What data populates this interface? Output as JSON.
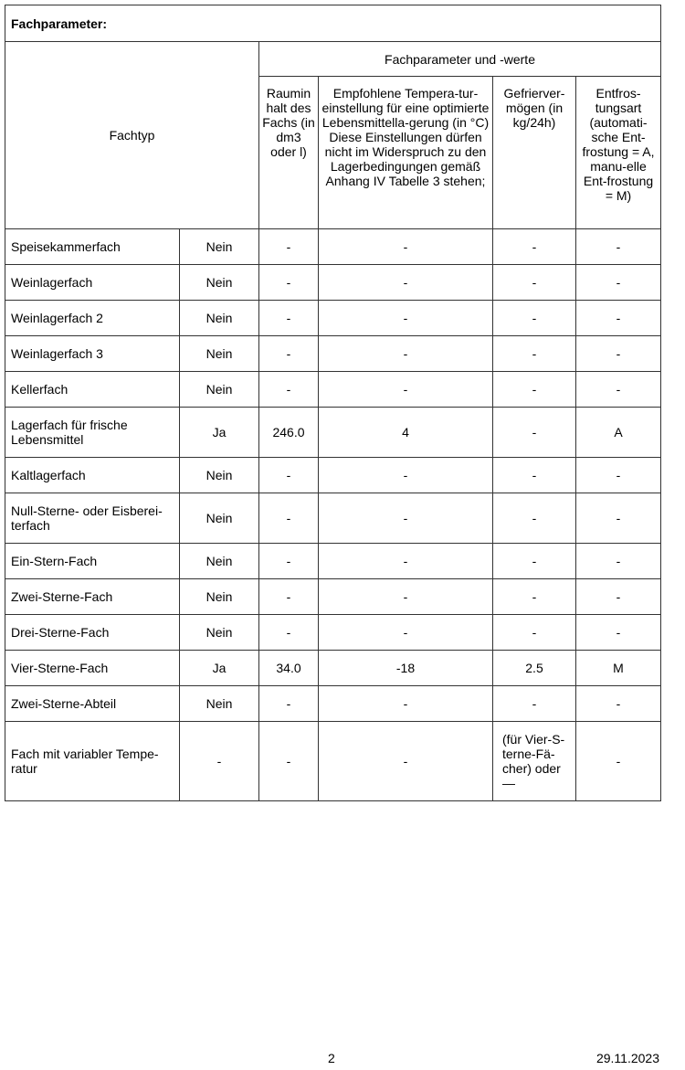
{
  "title": "Fachparameter:",
  "header": {
    "fachtyp": "Fachtyp",
    "group": "Fachparameter und -werte",
    "columns": [
      "Raumin halt des Fachs (in dm3 oder l)",
      "Empfohlene Tempera-tur-einstellung für eine optimierte Lebensmittella-gerung (in °C) Diese Einstellungen dürfen nicht im Widerspruch zu den Lagerbedingungen gemäß Anhang IV Tabelle 3 stehen;",
      "Gefrierver-mögen (in kg/24h)",
      "Entfros-tungsart (automati-sche Ent-frostung = A, manu-elle Ent-frostung = M)"
    ]
  },
  "rows": [
    {
      "name": "Speisekammerfach",
      "present": "Nein",
      "volume": "-",
      "temp": "-",
      "freeze": "-",
      "defrost": "-"
    },
    {
      "name": "Weinlagerfach",
      "present": "Nein",
      "volume": "-",
      "temp": "-",
      "freeze": "-",
      "defrost": "-"
    },
    {
      "name": "Weinlagerfach 2",
      "present": "Nein",
      "volume": "-",
      "temp": "-",
      "freeze": "-",
      "defrost": "-"
    },
    {
      "name": "Weinlagerfach 3",
      "present": "Nein",
      "volume": "-",
      "temp": "-",
      "freeze": "-",
      "defrost": "-"
    },
    {
      "name": "Kellerfach",
      "present": "Nein",
      "volume": "-",
      "temp": "-",
      "freeze": "-",
      "defrost": "-"
    },
    {
      "name": "Lagerfach für frische Lebensmittel",
      "present": "Ja",
      "volume": "246.0",
      "temp": "4",
      "freeze": "-",
      "defrost": "A"
    },
    {
      "name": "Kaltlagerfach",
      "present": "Nein",
      "volume": "-",
      "temp": "-",
      "freeze": "-",
      "defrost": "-"
    },
    {
      "name": "Null-Sterne- oder Eisberei-terfach",
      "present": "Nein",
      "volume": "-",
      "temp": "-",
      "freeze": "-",
      "defrost": "-"
    },
    {
      "name": "Ein-Stern-Fach",
      "present": "Nein",
      "volume": "-",
      "temp": "-",
      "freeze": "-",
      "defrost": "-"
    },
    {
      "name": "Zwei-Sterne-Fach",
      "present": "Nein",
      "volume": "-",
      "temp": "-",
      "freeze": "-",
      "defrost": "-"
    },
    {
      "name": "Drei-Sterne-Fach",
      "present": "Nein",
      "volume": "-",
      "temp": "-",
      "freeze": "-",
      "defrost": "-"
    },
    {
      "name": "Vier-Sterne-Fach",
      "present": "Ja",
      "volume": "34.0",
      "temp": "-18",
      "freeze": "2.5",
      "defrost": "M"
    },
    {
      "name": "Zwei-Sterne-Abteil",
      "present": "Nein",
      "volume": "-",
      "temp": "-",
      "freeze": "-",
      "defrost": "-"
    },
    {
      "name": "Fach mit variabler Tempe-ratur",
      "present": "-",
      "volume": "-",
      "temp": "-",
      "freeze": "(für Vier-S-terne-Fä-cher) oder —",
      "defrost": "-"
    }
  ],
  "footer": {
    "page": "2",
    "date": "29.11.2023"
  }
}
